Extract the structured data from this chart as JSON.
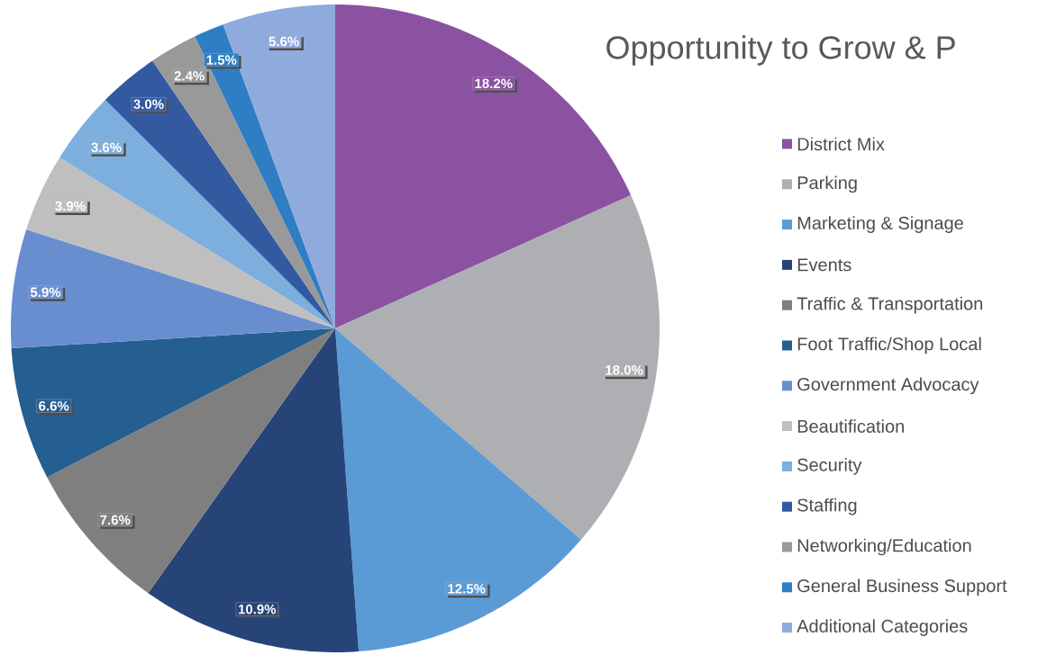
{
  "chart_data": {
    "type": "pie",
    "title": "Opportunity to Grow & P",
    "categories": [
      "District Mix",
      "Parking",
      "Marketing & Signage",
      "Events",
      "Traffic & Transportation",
      "Foot Traffic/Shop Local",
      "Government Advocacy",
      "Beautification",
      "Security",
      "Staffing",
      "Networking/Education",
      "General Business Support",
      "Additional Categories"
    ],
    "values": [
      18.2,
      18.0,
      12.5,
      10.9,
      7.6,
      6.6,
      5.9,
      3.9,
      3.6,
      3.0,
      2.4,
      1.5,
      5.6
    ],
    "value_labels": [
      "18.2%",
      "18.0%",
      "12.5%",
      "10.9%",
      "7.6%",
      "6.6%",
      "5.9%",
      "3.9%",
      "3.6%",
      "3.0%",
      "2.4%",
      "1.5%",
      "5.6%"
    ],
    "colors": [
      "#8b52a1",
      "#adafb2",
      "#5b9bd5",
      "#264478",
      "#7f7f7f",
      "#255e91",
      "#698ed0",
      "#bfbfbf",
      "#7cafdd",
      "#335aa1",
      "#999999",
      "#2f7ec4",
      "#8faadc"
    ],
    "legend": "right"
  }
}
